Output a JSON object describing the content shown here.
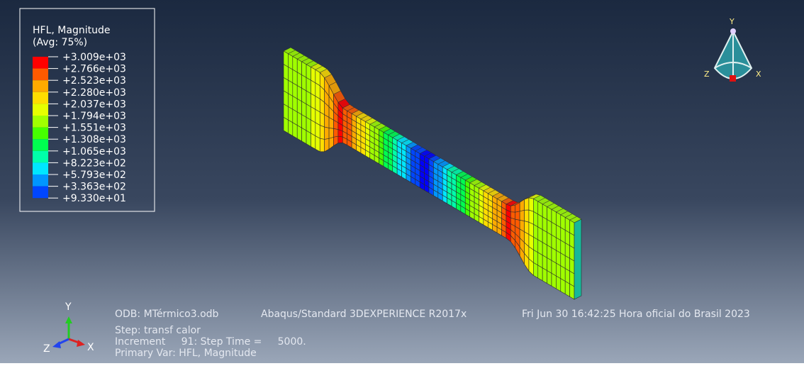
{
  "legend": {
    "title": "HFL, Magnitude",
    "subtitle": "(Avg: 75%)",
    "labels": [
      "+3.009e+03",
      "+2.766e+03",
      "+2.523e+03",
      "+2.280e+03",
      "+2.037e+03",
      "+1.794e+03",
      "+1.551e+03",
      "+1.308e+03",
      "+1.065e+03",
      "+8.223e+02",
      "+5.793e+02",
      "+3.363e+02",
      "+9.330e+01"
    ],
    "colors": [
      "#ff0000",
      "#ff5a00",
      "#ffaa00",
      "#ffdd00",
      "#e6ff00",
      "#a0ff00",
      "#46ff00",
      "#00ff50",
      "#00ffaa",
      "#00e6ff",
      "#0096ff",
      "#0046ff",
      "#0000ff"
    ]
  },
  "info": {
    "odb": "ODB: MTérmico3.odb",
    "solver": "Abaqus/Standard 3DEXPERIENCE R2017x",
    "date": "Fri Jun 30 16:42:25 Hora oficial do Brasil 2023",
    "step": "Step: transf calor",
    "increment": "Increment     91: Step Time =     5000.",
    "primary_var": "Primary Var: HFL, Magnitude"
  },
  "triad": {
    "y": "Y",
    "x": "X",
    "z": "Z"
  },
  "view_cube": {
    "y": "Y",
    "z": "Z",
    "x": "X"
  }
}
